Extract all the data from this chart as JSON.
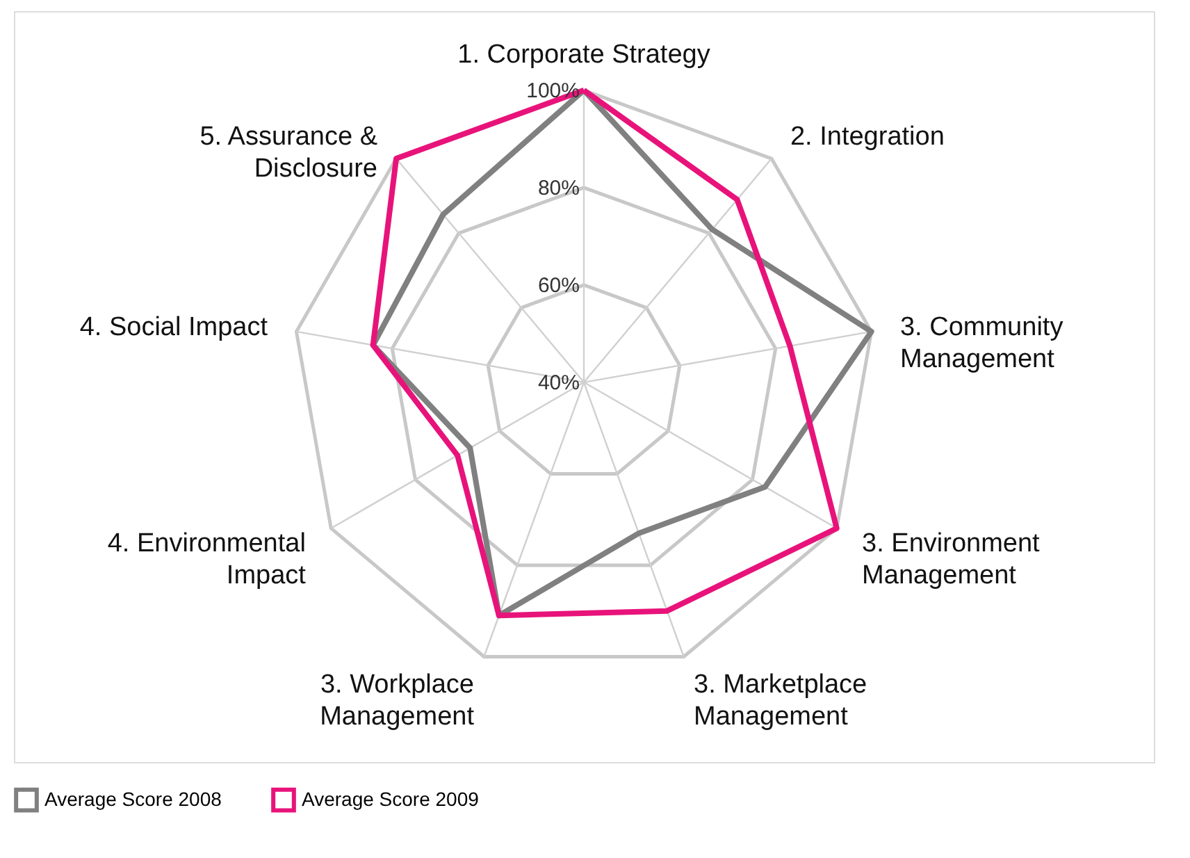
{
  "chart_data": {
    "type": "radar",
    "categories": [
      "1. Corporate Strategy",
      "2. Integration",
      "3. Community Management",
      "3. Environment Management",
      "3. Marketplace Management",
      "3. Workplace Management",
      "4. Environmental Impact",
      "4. Social Impact",
      "5. Assurance & Disclosure"
    ],
    "series": [
      {
        "name": "Average Score 2008",
        "color": "#808080",
        "values": [
          100,
          81,
          100,
          83,
          73,
          91,
          67,
          84,
          85
        ]
      },
      {
        "name": "Average Score 2009",
        "color": "#e8137a",
        "values": [
          100,
          89,
          83,
          100,
          90,
          91,
          70,
          84,
          100
        ]
      }
    ],
    "ylim": [
      40,
      100
    ],
    "yticks": [
      {
        "value": 40,
        "label": "40%"
      },
      {
        "value": 60,
        "label": "60%"
      },
      {
        "value": 80,
        "label": "80%"
      },
      {
        "value": 100,
        "label": "100%"
      }
    ],
    "grid": true,
    "legend": "bottom"
  }
}
